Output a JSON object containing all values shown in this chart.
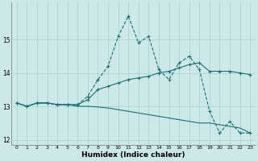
{
  "x": [
    0,
    1,
    2,
    3,
    4,
    5,
    6,
    7,
    8,
    9,
    10,
    11,
    12,
    13,
    14,
    15,
    16,
    17,
    18,
    19,
    20,
    21,
    22,
    23
  ],
  "line1": [
    13.1,
    13.0,
    13.1,
    13.1,
    13.05,
    13.05,
    13.05,
    13.3,
    13.8,
    14.2,
    15.1,
    15.7,
    14.9,
    15.1,
    14.1,
    13.8,
    14.3,
    14.5,
    14.1,
    12.85,
    12.2,
    12.55,
    12.2,
    12.2
  ],
  "line2": [
    13.1,
    13.0,
    13.1,
    13.1,
    13.05,
    13.05,
    13.05,
    13.2,
    13.5,
    13.6,
    13.7,
    13.8,
    13.85,
    13.9,
    14.0,
    14.05,
    14.15,
    14.25,
    14.3,
    14.05,
    14.05,
    14.05,
    14.0,
    13.95
  ],
  "line3": [
    13.1,
    13.0,
    13.1,
    13.1,
    13.05,
    13.05,
    13.0,
    13.0,
    12.98,
    12.95,
    12.9,
    12.85,
    12.8,
    12.75,
    12.7,
    12.65,
    12.6,
    12.55,
    12.5,
    12.5,
    12.45,
    12.4,
    12.35,
    12.2
  ],
  "bg_color": "#cce8e8",
  "grid_color": "#aacece",
  "line_color": "#1a7070",
  "xlabel": "Humidex (Indice chaleur)",
  "xlim": [
    -0.5,
    23.5
  ],
  "ylim": [
    11.85,
    16.1
  ],
  "yticks": [
    12,
    13,
    14,
    15
  ],
  "xticks": [
    0,
    1,
    2,
    3,
    4,
    5,
    6,
    7,
    8,
    9,
    10,
    11,
    12,
    13,
    14,
    15,
    16,
    17,
    18,
    19,
    20,
    21,
    22,
    23
  ]
}
